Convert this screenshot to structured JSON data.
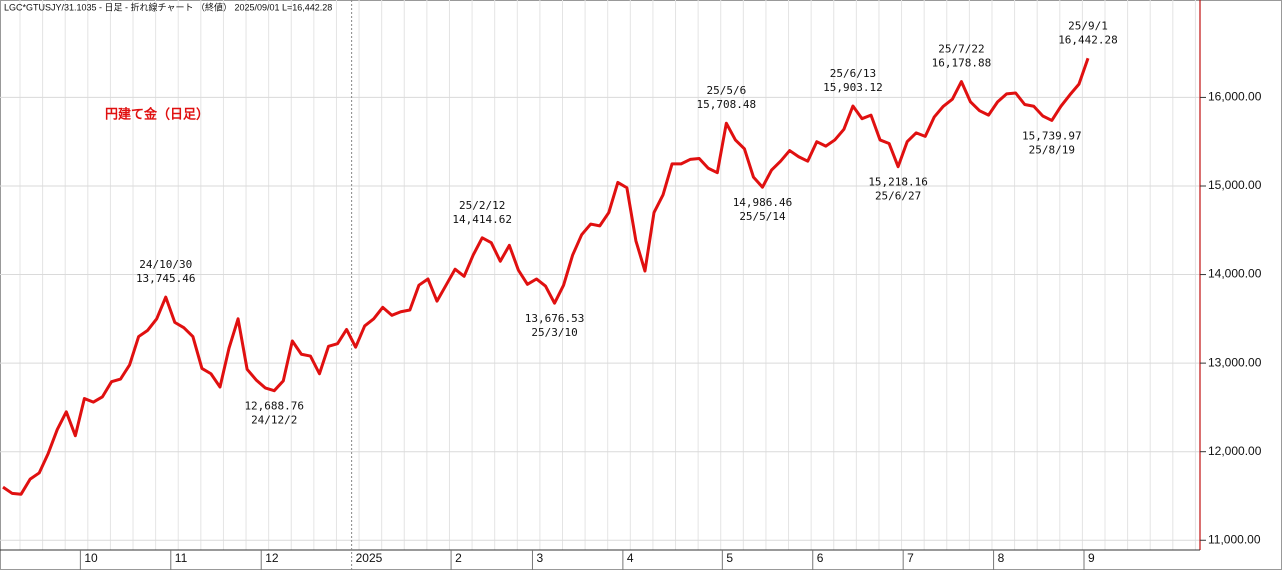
{
  "header": "LGC*GTUSJY/31.1035 - 日足 - 折れ線チャート （終値） 2025/09/01 L=16,442.28",
  "chart_data": {
    "type": "line",
    "title": "円建て金（日足）",
    "color": "#e01010",
    "grid": true,
    "categories": [
      null,
      null,
      null,
      null,
      null,
      null,
      null,
      null,
      null,
      "10",
      null,
      null,
      null,
      null,
      null,
      null,
      null,
      null,
      null,
      "11",
      null,
      null,
      null,
      null,
      null,
      null,
      null,
      null,
      null,
      "12",
      null,
      null,
      null,
      null,
      null,
      null,
      null,
      null,
      null,
      "2025",
      null,
      null,
      null,
      null,
      null,
      null,
      null,
      null,
      null,
      null,
      "2",
      null,
      null,
      null,
      null,
      null,
      null,
      null,
      null,
      "3",
      null,
      null,
      null,
      null,
      null,
      null,
      null,
      null,
      null,
      "4",
      null,
      null,
      null,
      null,
      null,
      null,
      null,
      null,
      null,
      null,
      "5",
      null,
      null,
      null,
      null,
      null,
      null,
      null,
      null,
      null,
      "6",
      null,
      null,
      null,
      null,
      null,
      null,
      null,
      null,
      null,
      "7",
      null,
      null,
      null,
      null,
      null,
      null,
      null,
      null,
      null,
      "8",
      null,
      null,
      null,
      null,
      null,
      null,
      null,
      null,
      null,
      "9"
    ],
    "values": [
      11600,
      11530,
      11520,
      11690,
      11760,
      11980,
      12250,
      12450,
      12180,
      12600,
      12560,
      12620,
      12790,
      12820,
      12980,
      13300,
      13370,
      13500,
      13745.46,
      13460,
      13400,
      13300,
      12940,
      12880,
      12730,
      13170,
      13500,
      12930,
      12810,
      12720,
      12688.76,
      12800,
      13250,
      13100,
      13080,
      12880,
      13190,
      13220,
      13380,
      13180,
      13420,
      13500,
      13630,
      13540,
      13580,
      13600,
      13880,
      13950,
      13700,
      13880,
      14060,
      13980,
      14220,
      14414.62,
      14360,
      14150,
      14330,
      14050,
      13890,
      13950,
      13870,
      13676.53,
      13880,
      14220,
      14450,
      14570,
      14550,
      14700,
      15040,
      14980,
      14380,
      14040,
      14700,
      14900,
      15250,
      15250,
      15300,
      15310,
      15200,
      15150,
      15708.48,
      15520,
      15420,
      15100,
      14986.46,
      15180,
      15280,
      15400,
      15330,
      15280,
      15500,
      15450,
      15520,
      15640,
      15903.12,
      15760,
      15800,
      15520,
      15480,
      15218.16,
      15500,
      15600,
      15560,
      15780,
      15900,
      15980,
      16178.88,
      15950,
      15850,
      15800,
      15950,
      16040,
      16050,
      15920,
      15900,
      15790,
      15739.97,
      15900,
      16030,
      16150,
      16442.28
    ],
    "value_labels": [
      null,
      null,
      null,
      null,
      null,
      null,
      null,
      null,
      null,
      null,
      null,
      null,
      null,
      null,
      null,
      null,
      null,
      null,
      "13,745.46",
      null,
      null,
      null,
      null,
      null,
      null,
      null,
      null,
      null,
      null,
      null,
      "12,688.76",
      null,
      null,
      null,
      null,
      null,
      null,
      null,
      null,
      null,
      null,
      null,
      null,
      null,
      null,
      null,
      null,
      null,
      null,
      null,
      null,
      null,
      null,
      "14,414.62",
      null,
      null,
      null,
      null,
      null,
      null,
      null,
      "13,676.53",
      null,
      null,
      null,
      null,
      null,
      null,
      null,
      null,
      null,
      null,
      null,
      null,
      null,
      null,
      null,
      null,
      null,
      null,
      "15,708.48",
      null,
      null,
      null,
      "14,986.46",
      null,
      null,
      null,
      null,
      null,
      null,
      null,
      null,
      null,
      "15,903.12",
      null,
      null,
      null,
      null,
      "15,218.16",
      null,
      null,
      null,
      null,
      null,
      null,
      "16,178.88",
      null,
      null,
      null,
      null,
      null,
      null,
      null,
      null,
      null,
      "15,739.97",
      null,
      null,
      null,
      "16,442.28"
    ],
    "date_labels": [
      null,
      null,
      null,
      null,
      null,
      null,
      null,
      null,
      null,
      null,
      null,
      null,
      null,
      null,
      null,
      null,
      null,
      null,
      "24/10/30",
      null,
      null,
      null,
      null,
      null,
      null,
      null,
      null,
      null,
      null,
      null,
      "24/12/2",
      null,
      null,
      null,
      null,
      null,
      null,
      null,
      null,
      null,
      null,
      null,
      null,
      null,
      null,
      null,
      null,
      null,
      null,
      null,
      null,
      null,
      null,
      "25/2/12",
      null,
      null,
      null,
      null,
      null,
      null,
      null,
      "25/3/10",
      null,
      null,
      null,
      null,
      null,
      null,
      null,
      null,
      null,
      null,
      null,
      null,
      null,
      null,
      null,
      null,
      null,
      null,
      "25/5/6",
      null,
      null,
      null,
      "25/5/14",
      null,
      null,
      null,
      null,
      null,
      null,
      null,
      null,
      null,
      "25/6/13",
      null,
      null,
      null,
      null,
      "25/6/27",
      null,
      null,
      null,
      null,
      null,
      null,
      "25/7/22",
      null,
      null,
      null,
      null,
      null,
      null,
      null,
      null,
      null,
      "25/8/19",
      null,
      null,
      null,
      "25/9/1"
    ],
    "ylim": [
      10890,
      17100
    ],
    "yticks": [
      {
        "value": 11000,
        "label": "11,000.00"
      },
      {
        "value": 12000,
        "label": "12,000.00"
      },
      {
        "value": 13000,
        "label": "13,000.00"
      },
      {
        "value": 14000,
        "label": "14,000.00"
      },
      {
        "value": 15000,
        "label": "15,000.00"
      },
      {
        "value": 16000,
        "label": "16,000.00"
      }
    ]
  }
}
